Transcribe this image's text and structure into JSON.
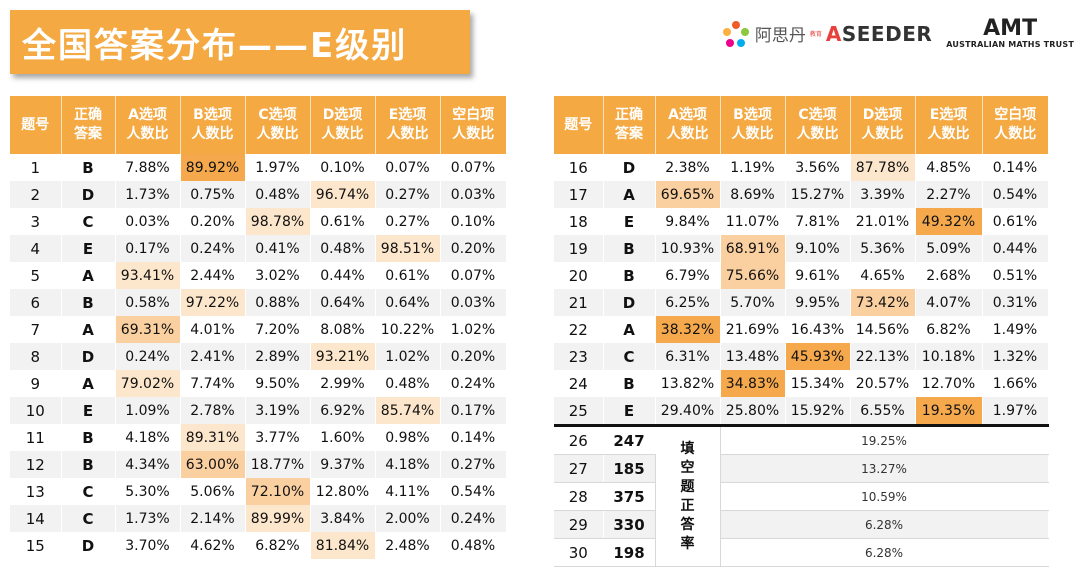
{
  "title": "全国答案分布——E级别",
  "logos": {
    "aseeder_cn": "阿思丹",
    "aseeder_sub": "教育",
    "aseeder_en_a": "A",
    "aseeder_en_rest": "SEEDER",
    "amt_mark": "AMT",
    "amt_text": "AUSTRALIAN MATHS TRUST"
  },
  "headers": {
    "num": "题号",
    "ans": [
      "正确",
      "答案"
    ],
    "a": [
      "A选项",
      "人数比"
    ],
    "b": [
      "B选项",
      "人数比"
    ],
    "c": [
      "C选项",
      "人数比"
    ],
    "d": [
      "D选项",
      "人数比"
    ],
    "e": [
      "E选项",
      "人数比"
    ],
    "blank": [
      "空白项",
      "人数比"
    ]
  },
  "rows": [
    {
      "q": "1",
      "ans": "B",
      "v": [
        "7.88%",
        "89.92%",
        "1.97%",
        "0.10%",
        "0.07%",
        "0.07%"
      ],
      "hl": [
        0,
        1,
        0,
        0,
        0,
        0
      ]
    },
    {
      "q": "2",
      "ans": "D",
      "v": [
        "1.73%",
        "0.75%",
        "0.48%",
        "96.74%",
        "0.27%",
        "0.03%"
      ],
      "hl": [
        0,
        0,
        0,
        3,
        0,
        0
      ]
    },
    {
      "q": "3",
      "ans": "C",
      "v": [
        "0.03%",
        "0.20%",
        "98.78%",
        "0.61%",
        "0.27%",
        "0.10%"
      ],
      "hl": [
        0,
        0,
        3,
        0,
        0,
        0
      ]
    },
    {
      "q": "4",
      "ans": "E",
      "v": [
        "0.17%",
        "0.24%",
        "0.41%",
        "0.48%",
        "98.51%",
        "0.20%"
      ],
      "hl": [
        0,
        0,
        0,
        0,
        3,
        0
      ]
    },
    {
      "q": "5",
      "ans": "A",
      "v": [
        "93.41%",
        "2.44%",
        "3.02%",
        "0.44%",
        "0.61%",
        "0.07%"
      ],
      "hl": [
        3,
        0,
        0,
        0,
        0,
        0
      ]
    },
    {
      "q": "6",
      "ans": "B",
      "v": [
        "0.58%",
        "97.22%",
        "0.88%",
        "0.64%",
        "0.64%",
        "0.03%"
      ],
      "hl": [
        0,
        3,
        0,
        0,
        0,
        0
      ]
    },
    {
      "q": "7",
      "ans": "A",
      "v": [
        "69.31%",
        "4.01%",
        "7.20%",
        "8.08%",
        "10.22%",
        "1.02%"
      ],
      "hl": [
        2,
        0,
        0,
        0,
        0,
        0
      ]
    },
    {
      "q": "8",
      "ans": "D",
      "v": [
        "0.24%",
        "2.41%",
        "2.89%",
        "93.21%",
        "1.02%",
        "0.20%"
      ],
      "hl": [
        0,
        0,
        0,
        3,
        0,
        0
      ]
    },
    {
      "q": "9",
      "ans": "A",
      "v": [
        "79.02%",
        "7.74%",
        "9.50%",
        "2.99%",
        "0.48%",
        "0.24%"
      ],
      "hl": [
        3,
        0,
        0,
        0,
        0,
        0
      ]
    },
    {
      "q": "10",
      "ans": "E",
      "v": [
        "1.09%",
        "2.78%",
        "3.19%",
        "6.92%",
        "85.74%",
        "0.17%"
      ],
      "hl": [
        0,
        0,
        0,
        0,
        3,
        0
      ]
    },
    {
      "q": "11",
      "ans": "B",
      "v": [
        "4.18%",
        "89.31%",
        "3.77%",
        "1.60%",
        "0.98%",
        "0.14%"
      ],
      "hl": [
        0,
        3,
        0,
        0,
        0,
        0
      ]
    },
    {
      "q": "12",
      "ans": "B",
      "v": [
        "4.34%",
        "63.00%",
        "18.77%",
        "9.37%",
        "4.18%",
        "0.27%"
      ],
      "hl": [
        0,
        2,
        0,
        0,
        0,
        0
      ]
    },
    {
      "q": "13",
      "ans": "C",
      "v": [
        "5.30%",
        "5.06%",
        "72.10%",
        "12.80%",
        "4.11%",
        "0.54%"
      ],
      "hl": [
        0,
        0,
        2,
        0,
        0,
        0
      ]
    },
    {
      "q": "14",
      "ans": "C",
      "v": [
        "1.73%",
        "2.14%",
        "89.99%",
        "3.84%",
        "2.00%",
        "0.24%"
      ],
      "hl": [
        0,
        0,
        3,
        0,
        0,
        0
      ]
    },
    {
      "q": "15",
      "ans": "D",
      "v": [
        "3.70%",
        "4.62%",
        "6.82%",
        "81.84%",
        "2.48%",
        "0.48%"
      ],
      "hl": [
        0,
        0,
        0,
        3,
        0,
        0
      ]
    },
    {
      "q": "16",
      "ans": "D",
      "v": [
        "2.38%",
        "1.19%",
        "3.56%",
        "87.78%",
        "4.85%",
        "0.14%"
      ],
      "hl": [
        0,
        0,
        0,
        3,
        0,
        0
      ]
    },
    {
      "q": "17",
      "ans": "A",
      "v": [
        "69.65%",
        "8.69%",
        "15.27%",
        "3.39%",
        "2.27%",
        "0.54%"
      ],
      "hl": [
        2,
        0,
        0,
        0,
        0,
        0
      ]
    },
    {
      "q": "18",
      "ans": "E",
      "v": [
        "9.84%",
        "11.07%",
        "7.81%",
        "21.01%",
        "49.32%",
        "0.61%"
      ],
      "hl": [
        0,
        0,
        0,
        0,
        1,
        0
      ]
    },
    {
      "q": "19",
      "ans": "B",
      "v": [
        "10.93%",
        "68.91%",
        "9.10%",
        "5.36%",
        "5.09%",
        "0.44%"
      ],
      "hl": [
        0,
        2,
        0,
        0,
        0,
        0
      ]
    },
    {
      "q": "20",
      "ans": "B",
      "v": [
        "6.79%",
        "75.66%",
        "9.61%",
        "4.65%",
        "2.68%",
        "0.51%"
      ],
      "hl": [
        0,
        2,
        0,
        0,
        0,
        0
      ]
    },
    {
      "q": "21",
      "ans": "D",
      "v": [
        "6.25%",
        "5.70%",
        "9.95%",
        "73.42%",
        "4.07%",
        "0.31%"
      ],
      "hl": [
        0,
        0,
        0,
        2,
        0,
        0
      ]
    },
    {
      "q": "22",
      "ans": "A",
      "v": [
        "38.32%",
        "21.69%",
        "16.43%",
        "14.56%",
        "6.82%",
        "1.49%"
      ],
      "hl": [
        1,
        0,
        0,
        0,
        0,
        0
      ]
    },
    {
      "q": "23",
      "ans": "C",
      "v": [
        "6.31%",
        "13.48%",
        "45.93%",
        "22.13%",
        "10.18%",
        "1.32%"
      ],
      "hl": [
        0,
        0,
        1,
        0,
        0,
        0
      ]
    },
    {
      "q": "24",
      "ans": "B",
      "v": [
        "13.82%",
        "34.83%",
        "15.34%",
        "20.57%",
        "12.70%",
        "1.66%"
      ],
      "hl": [
        0,
        1,
        0,
        0,
        0,
        0
      ]
    },
    {
      "q": "25",
      "ans": "E",
      "v": [
        "29.40%",
        "25.80%",
        "15.92%",
        "6.55%",
        "19.35%",
        "1.97%"
      ],
      "hl": [
        0,
        0,
        0,
        0,
        1,
        0
      ]
    }
  ],
  "fill_rows": [
    {
      "q": "26",
      "ans": "247",
      "rate": "19.25%"
    },
    {
      "q": "27",
      "ans": "185",
      "rate": "13.27%"
    },
    {
      "q": "28",
      "ans": "375",
      "rate": "10.59%"
    },
    {
      "q": "29",
      "ans": "330",
      "rate": "6.28%"
    },
    {
      "q": "30",
      "ans": "198",
      "rate": "6.28%"
    }
  ],
  "fill_label": [
    "填",
    "空",
    "题",
    "正",
    "答",
    "率"
  ],
  "colors": {
    "header": "#f4a942",
    "hl_strong": "#f5a94c",
    "hl_mid": "#fbd0a0",
    "hl_light": "#fde7cc"
  }
}
